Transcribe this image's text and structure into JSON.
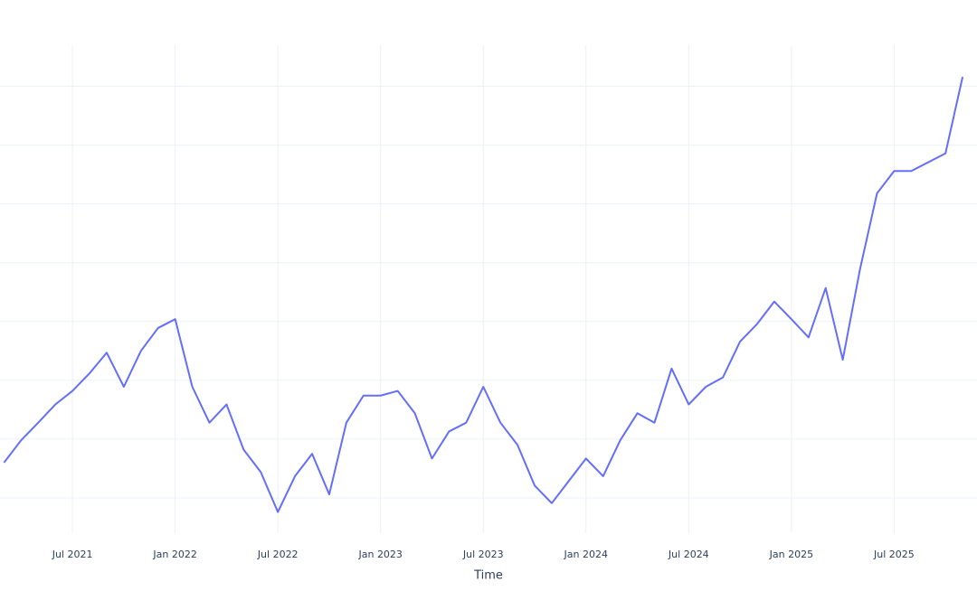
{
  "chart_data": {
    "type": "line",
    "x_label": "Time",
    "x": [
      "2021-03",
      "2021-04",
      "2021-05",
      "2021-06",
      "2021-07",
      "2021-08",
      "2021-09",
      "2021-10",
      "2021-11",
      "2021-12",
      "2022-01",
      "2022-02",
      "2022-03",
      "2022-04",
      "2022-05",
      "2022-06",
      "2022-07",
      "2022-08",
      "2022-09",
      "2022-10",
      "2022-11",
      "2022-12",
      "2023-01",
      "2023-02",
      "2023-03",
      "2023-04",
      "2023-05",
      "2023-06",
      "2023-07",
      "2023-08",
      "2023-09",
      "2023-10",
      "2023-11",
      "2023-12",
      "2024-01",
      "2024-02",
      "2024-03",
      "2024-04",
      "2024-05",
      "2024-06",
      "2024-07",
      "2024-08",
      "2024-09",
      "2024-10",
      "2024-11",
      "2024-12",
      "2025-01",
      "2025-02",
      "2025-03",
      "2025-04",
      "2025-05",
      "2025-06",
      "2025-07",
      "2025-08",
      "2025-09",
      "2025-10",
      "2025-11"
    ],
    "series": [
      {
        "color": "#636efa",
        "values": [
          1.6,
          1.98,
          2.28,
          2.59,
          2.82,
          3.12,
          3.47,
          2.89,
          3.5,
          3.89,
          4.04,
          2.89,
          2.28,
          2.59,
          1.82,
          1.44,
          0.76,
          1.37,
          1.75,
          1.06,
          2.28,
          2.74,
          2.74,
          2.82,
          2.44,
          1.67,
          2.13,
          2.28,
          2.89,
          2.28,
          1.9,
          1.21,
          0.91,
          1.29,
          1.67,
          1.37,
          1.98,
          2.44,
          2.28,
          3.2,
          2.59,
          2.89,
          3.05,
          3.66,
          3.96,
          4.34,
          4.04,
          3.73,
          4.57,
          3.35,
          4.88,
          6.18,
          6.56,
          6.56,
          6.71,
          6.86,
          8.16
        ]
      }
    ],
    "xlim": [
      "2021-02",
      "2025-12"
    ],
    "xticks": [
      {
        "value": "2021-07",
        "label": "Jul 2021"
      },
      {
        "value": "2022-01",
        "label": "Jan 2022"
      },
      {
        "value": "2022-07",
        "label": "Jul 2022"
      },
      {
        "value": "2023-01",
        "label": "Jan 2023"
      },
      {
        "value": "2023-07",
        "label": "Jul 2023"
      },
      {
        "value": "2024-01",
        "label": "Jan 2024"
      },
      {
        "value": "2024-07",
        "label": "Jul 2024"
      },
      {
        "value": "2025-01",
        "label": "Jan 2025"
      },
      {
        "value": "2025-07",
        "label": "Jul 2025"
      }
    ],
    "ylim": [
      0.4,
      8.7
    ],
    "yticks": [
      1,
      2,
      3,
      4,
      5,
      6,
      7,
      8
    ],
    "show_ytick_labels": false,
    "grid": true
  }
}
